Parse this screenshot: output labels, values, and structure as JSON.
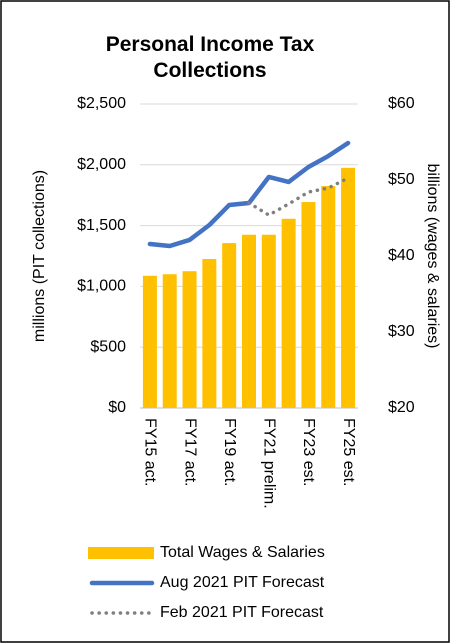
{
  "chart_data": {
    "type": "bar-line",
    "title": "Personal Income Tax Collections",
    "ylabel": "millions (PIT collections)",
    "y2label": "billions (wages & salaries)",
    "categories": [
      "FY15 act.",
      null,
      "FY17 act.",
      null,
      "FY19 act.",
      null,
      "FY21 prelim.",
      null,
      "FY23 est.",
      null,
      "FY25 est."
    ],
    "ylim": [
      0,
      2500
    ],
    "yticks": [
      {
        "value": 0,
        "label": "$0"
      },
      {
        "value": 500,
        "label": "$500"
      },
      {
        "value": 1000,
        "label": "$1,000"
      },
      {
        "value": 1500,
        "label": "$1,500"
      },
      {
        "value": 2000,
        "label": "$2,000"
      },
      {
        "value": 2500,
        "label": "$2,500"
      }
    ],
    "y2lim": [
      20,
      60
    ],
    "y2ticks": [
      {
        "value": 20,
        "label": "$20"
      },
      {
        "value": 30,
        "label": "$30"
      },
      {
        "value": 40,
        "label": "$40"
      },
      {
        "value": 50,
        "label": "$50"
      },
      {
        "value": 60,
        "label": "$60"
      }
    ],
    "grid": true,
    "legend": "bottom",
    "series": [
      {
        "name": "Total Wages & Salaries",
        "kind": "bar",
        "axis": "y2",
        "color": "#ffc000",
        "values": [
          37.4,
          37.6,
          38.0,
          39.6,
          41.7,
          42.8,
          42.8,
          44.9,
          47.1,
          49.2,
          51.6
        ]
      },
      {
        "name": "Aug 2021 PIT Forecast",
        "kind": "line",
        "color": "#4472c4",
        "values": [
          1349,
          1332,
          1382,
          1505,
          1669,
          1686,
          1900,
          1859,
          1982,
          2072,
          2179
        ]
      },
      {
        "name": "Feb 2021 PIT Forecast",
        "kind": "dotted",
        "color": "#7f7f7f",
        "values": [
          null,
          null,
          null,
          null,
          null,
          1686,
          1587,
          1678,
          1776,
          1809,
          1891
        ]
      }
    ]
  }
}
